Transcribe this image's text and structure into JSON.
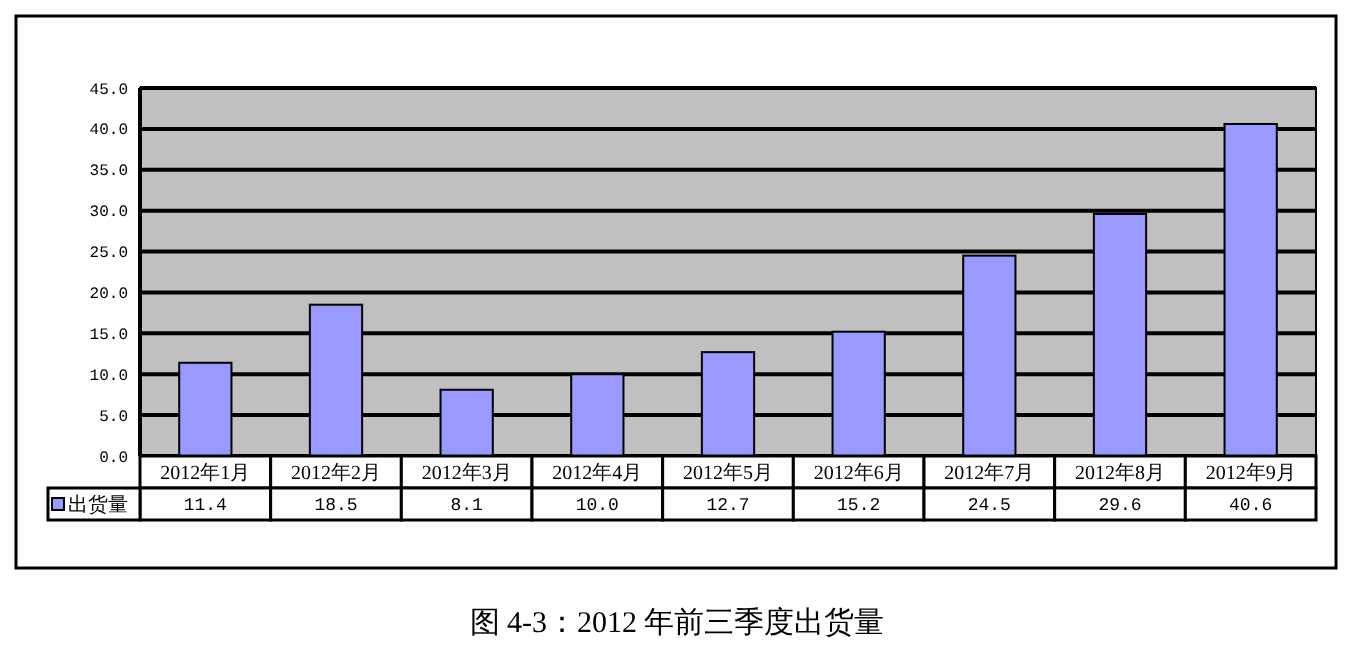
{
  "chart_data": {
    "type": "bar",
    "title": "图 4-3：2012 年前三季度出货量",
    "categories": [
      "2012年1月",
      "2012年2月",
      "2012年3月",
      "2012年4月",
      "2012年5月",
      "2012年6月",
      "2012年7月",
      "2012年8月",
      "2012年9月"
    ],
    "series": [
      {
        "name": "出货量",
        "color": "#9999ff",
        "values": [
          11.4,
          18.5,
          8.1,
          10.0,
          12.7,
          15.2,
          24.5,
          29.6,
          40.6
        ]
      }
    ],
    "value_labels": [
      "11.4",
      "18.5",
      "8.1",
      "10.0",
      "12.7",
      "15.2",
      "24.5",
      "29.6",
      "40.6"
    ],
    "ylim": [
      0,
      45
    ],
    "yticks": [
      {
        "value": 0,
        "label": "0.0"
      },
      {
        "value": 5,
        "label": "5.0"
      },
      {
        "value": 10,
        "label": "10.0"
      },
      {
        "value": 15,
        "label": "15.0"
      },
      {
        "value": 20,
        "label": "20.0"
      },
      {
        "value": 25,
        "label": "25.0"
      },
      {
        "value": 30,
        "label": "30.0"
      },
      {
        "value": 35,
        "label": "35.0"
      },
      {
        "value": 40,
        "label": "40.0"
      },
      {
        "value": 45,
        "label": "45.0"
      }
    ],
    "grid": "y",
    "legend": "bottom left"
  }
}
